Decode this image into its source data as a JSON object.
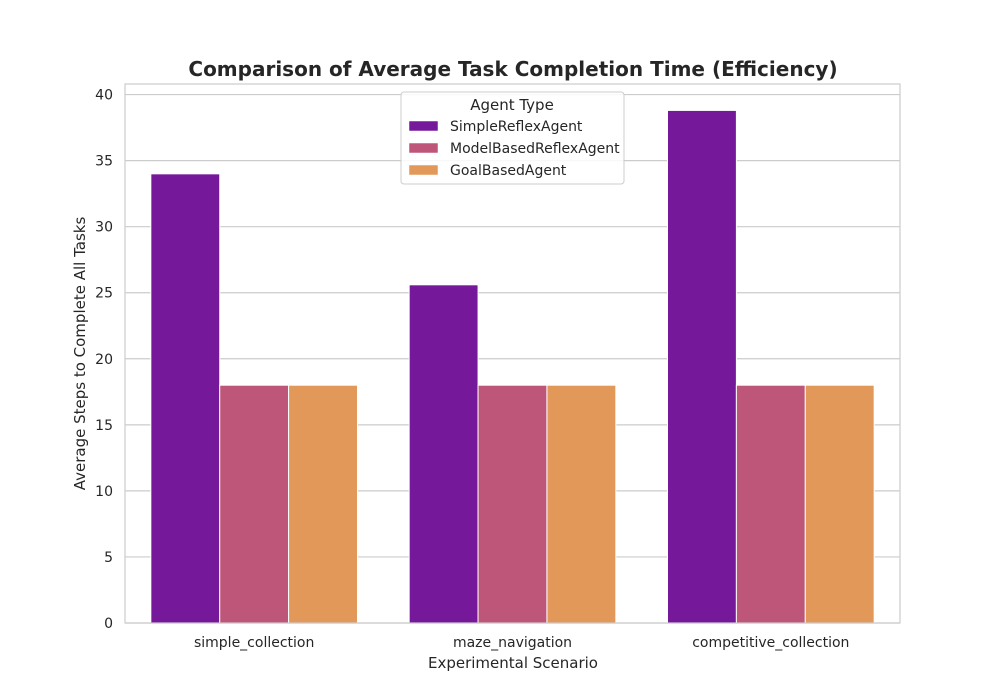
{
  "chart_data": {
    "type": "bar",
    "title": "Comparison of Average Task Completion Time (Efficiency)",
    "xlabel": "Experimental Scenario",
    "ylabel": "Average Steps to Complete All Tasks",
    "categories": [
      "simple_collection",
      "maze_navigation",
      "competitive_collection"
    ],
    "series": [
      {
        "name": "SimpleReflexAgent",
        "color": "#76189a",
        "values": [
          34.0,
          25.6,
          38.8
        ]
      },
      {
        "name": "ModelBasedReflexAgent",
        "color": "#bd5679",
        "values": [
          18.0,
          18.0,
          18.0
        ]
      },
      {
        "name": "GoalBasedAgent",
        "color": "#e19858",
        "values": [
          18.0,
          18.0,
          18.0
        ]
      }
    ],
    "ylim": [
      0,
      40.8
    ],
    "yticks": [
      "0",
      "5",
      "10",
      "15",
      "20",
      "25",
      "30",
      "35",
      "40"
    ],
    "grid": "horizontal",
    "legend": {
      "title": "Agent Type",
      "placement": "upper-center"
    }
  }
}
